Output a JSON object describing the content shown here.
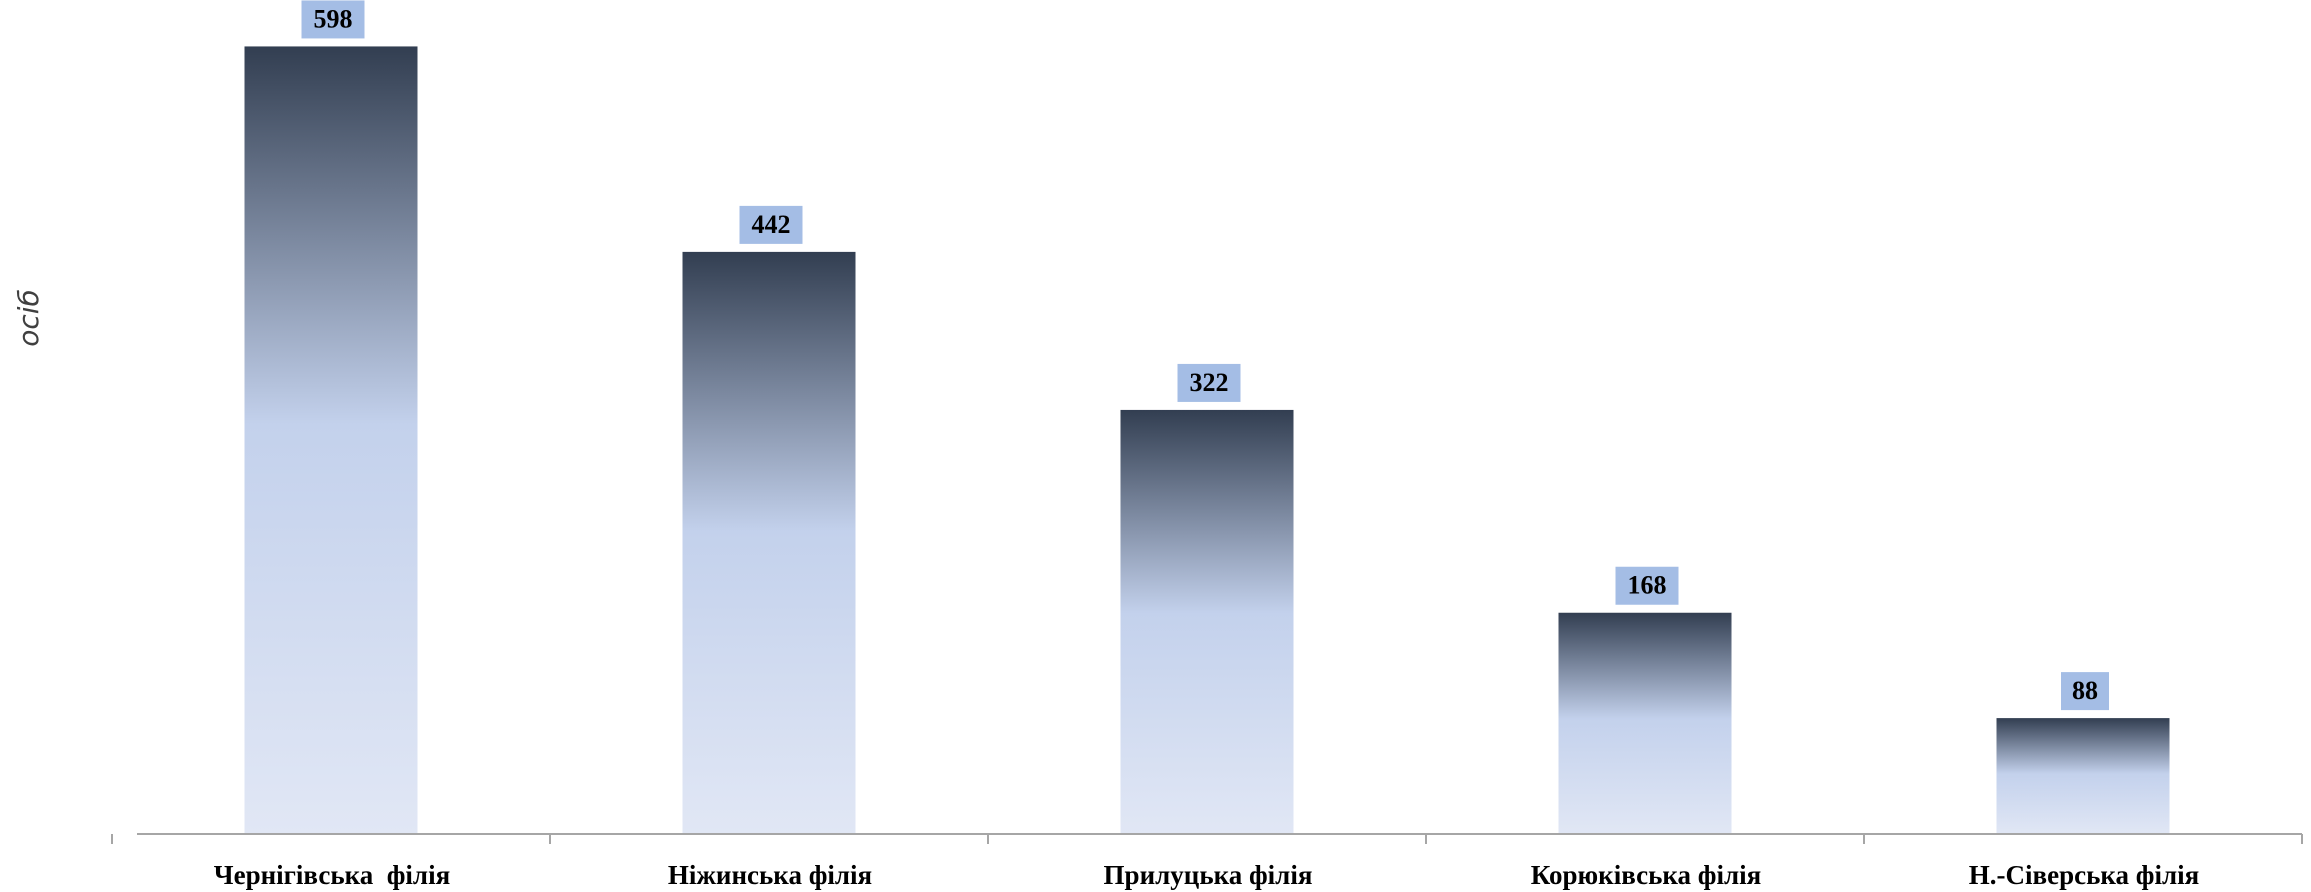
{
  "chart_data": {
    "type": "bar",
    "categories": [
      "Чернігівська  філія",
      "Ніжинська філія",
      "Прилуцька філія",
      "Корюківська філія",
      "Н.-Сіверська філія"
    ],
    "values": [
      598,
      442,
      322,
      168,
      88
    ],
    "title": "",
    "xlabel": "",
    "ylabel": "осіб",
    "ylim": [
      0,
      640
    ],
    "grid": false,
    "legend": "none",
    "colors": {
      "bar_top": "#323e51",
      "bar_mid": "#c3d1ec",
      "bar_bottom": "#e1e7f5",
      "label_box": "#a4bde5",
      "axis": "#a6a6a6"
    }
  }
}
